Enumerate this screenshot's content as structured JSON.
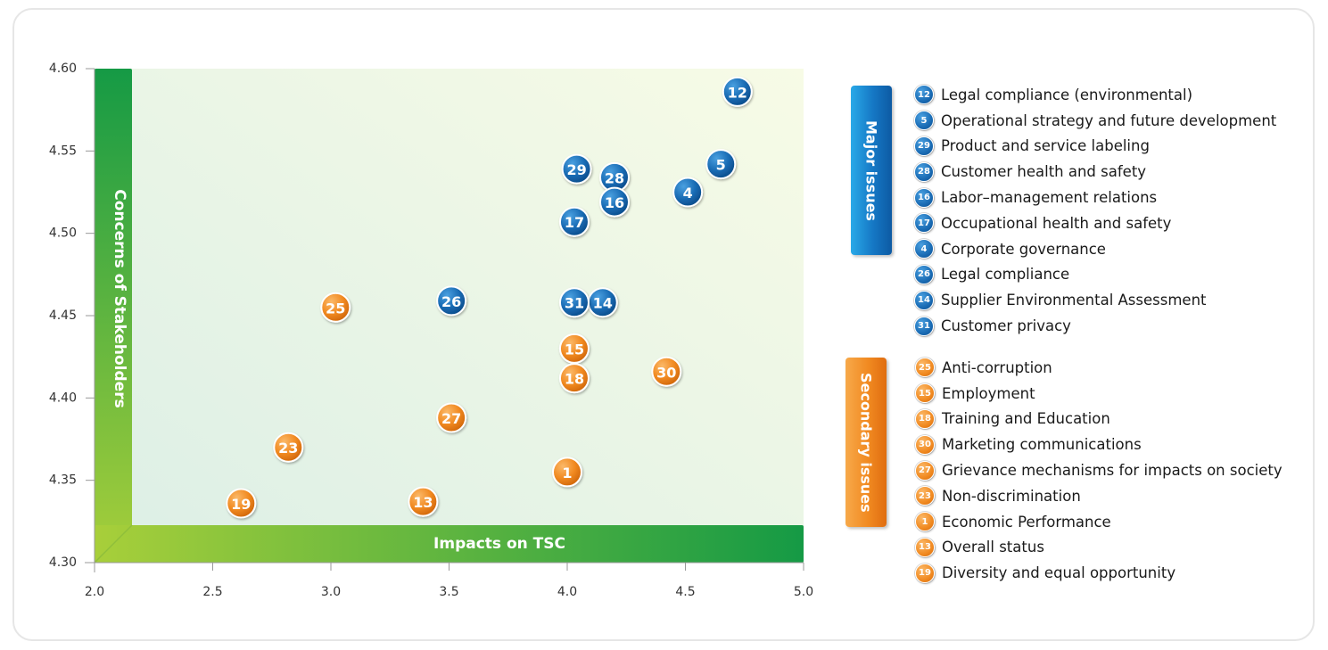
{
  "chart_data": {
    "type": "scatter",
    "xlabel": "Impacts on TSC",
    "ylabel": "Concerns of Stakeholders",
    "xlim": [
      2.0,
      5.0
    ],
    "ylim": [
      4.3,
      4.6
    ],
    "x_ticks": [
      "2.0",
      "2.5",
      "3.0",
      "3.5",
      "4.0",
      "4.5",
      "5.0"
    ],
    "y_ticks": [
      "4.30",
      "4.35",
      "4.40",
      "4.45",
      "4.50",
      "4.55",
      "4.60"
    ],
    "x_tick_values": [
      2.0,
      2.5,
      3.0,
      3.5,
      4.0,
      4.5,
      5.0
    ],
    "y_tick_values": [
      4.3,
      4.35,
      4.4,
      4.45,
      4.5,
      4.55,
      4.6
    ],
    "colors": {
      "major": "#1a6cb5",
      "secondary": "#f18a21"
    },
    "series": [
      {
        "name": "Major issues",
        "group": "major",
        "points": [
          {
            "id": "12",
            "x": 4.72,
            "y": 4.586
          },
          {
            "id": "5",
            "x": 4.65,
            "y": 4.542
          },
          {
            "id": "29",
            "x": 4.04,
            "y": 4.539
          },
          {
            "id": "28",
            "x": 4.2,
            "y": 4.534
          },
          {
            "id": "16",
            "x": 4.2,
            "y": 4.519
          },
          {
            "id": "17",
            "x": 4.03,
            "y": 4.507
          },
          {
            "id": "4",
            "x": 4.51,
            "y": 4.525
          },
          {
            "id": "26",
            "x": 3.51,
            "y": 4.459
          },
          {
            "id": "14",
            "x": 4.15,
            "y": 4.458
          },
          {
            "id": "31",
            "x": 4.03,
            "y": 4.458
          }
        ]
      },
      {
        "name": "Secondary issues",
        "group": "secondary",
        "points": [
          {
            "id": "25",
            "x": 3.02,
            "y": 4.455
          },
          {
            "id": "15",
            "x": 4.03,
            "y": 4.43
          },
          {
            "id": "18",
            "x": 4.03,
            "y": 4.412
          },
          {
            "id": "30",
            "x": 4.42,
            "y": 4.416
          },
          {
            "id": "27",
            "x": 3.51,
            "y": 4.388
          },
          {
            "id": "23",
            "x": 2.82,
            "y": 4.37
          },
          {
            "id": "1",
            "x": 4.0,
            "y": 4.355
          },
          {
            "id": "13",
            "x": 3.39,
            "y": 4.337
          },
          {
            "id": "19",
            "x": 2.62,
            "y": 4.336
          }
        ]
      }
    ]
  },
  "legend": {
    "major_title": "Major issues",
    "secondary_title": "Secondary issues",
    "major_items": [
      {
        "id": "12",
        "label": "Legal compliance (environmental)"
      },
      {
        "id": "5",
        "label": "Operational strategy and future development"
      },
      {
        "id": "29",
        "label": "Product and service labeling"
      },
      {
        "id": "28",
        "label": "Customer health and safety"
      },
      {
        "id": "16",
        "label": "Labor–management relations"
      },
      {
        "id": "17",
        "label": "Occupational health and safety"
      },
      {
        "id": "4",
        "label": "Corporate governance"
      },
      {
        "id": "26",
        "label": "Legal compliance"
      },
      {
        "id": "14",
        "label": "Supplier Environmental Assessment"
      },
      {
        "id": "31",
        "label": "Customer privacy"
      }
    ],
    "secondary_items": [
      {
        "id": "25",
        "label": "Anti-corruption"
      },
      {
        "id": "15",
        "label": "Employment"
      },
      {
        "id": "18",
        "label": "Training and Education"
      },
      {
        "id": "30",
        "label": "Marketing communications"
      },
      {
        "id": "27",
        "label": "Grievance mechanisms for impacts on society"
      },
      {
        "id": "23",
        "label": "Non-discrimination"
      },
      {
        "id": "1",
        "label": "Economic Performance"
      },
      {
        "id": "13",
        "label": "Overall status"
      },
      {
        "id": "19",
        "label": "Diversity and equal opportunity"
      }
    ]
  }
}
